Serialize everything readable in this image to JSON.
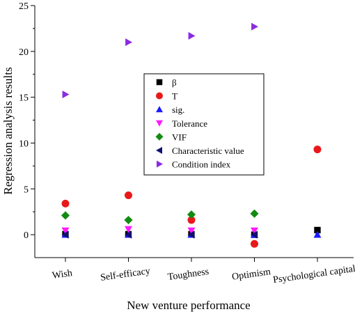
{
  "chart_data": {
    "type": "scatter",
    "title": "",
    "xlabel": "New venture performance",
    "ylabel": "Regression analysis results",
    "ylim": [
      -2.5,
      25
    ],
    "yticks": [
      "0",
      "5",
      "10",
      "15",
      "20",
      "25"
    ],
    "categories": [
      "Wish",
      "Self-efficacy",
      "Toughness",
      "Optimism",
      "Psychological capital"
    ],
    "grid": false,
    "legend_position": "center",
    "series": [
      {
        "name": "β",
        "marker": "square",
        "color": "#000000",
        "values": [
          0.05,
          0.05,
          0.05,
          0.0,
          0.5
        ]
      },
      {
        "name": "T",
        "marker": "circle",
        "color": "#e8191a",
        "values": [
          3.4,
          4.3,
          1.6,
          -1.0,
          9.3
        ]
      },
      {
        "name": "sig.",
        "marker": "triangle-up",
        "color": "#1a1aff",
        "values": [
          0.0,
          0.0,
          0.0,
          0.0,
          0.0
        ]
      },
      {
        "name": "Tolerance",
        "marker": "triangle-down",
        "color": "#ff1aff",
        "values": [
          0.45,
          0.6,
          0.45,
          0.45,
          null
        ]
      },
      {
        "name": "VIF",
        "marker": "diamond",
        "color": "#118b11",
        "values": [
          2.1,
          1.6,
          2.2,
          2.3,
          null
        ]
      },
      {
        "name": "Characteristic value",
        "marker": "triangle-left",
        "color": "#101070",
        "values": [
          0.0,
          0.0,
          0.0,
          0.0,
          null
        ]
      },
      {
        "name": "Condition index",
        "marker": "triangle-right",
        "color": "#8a2be2",
        "values": [
          15.3,
          21.0,
          21.7,
          22.7,
          null
        ]
      }
    ]
  }
}
